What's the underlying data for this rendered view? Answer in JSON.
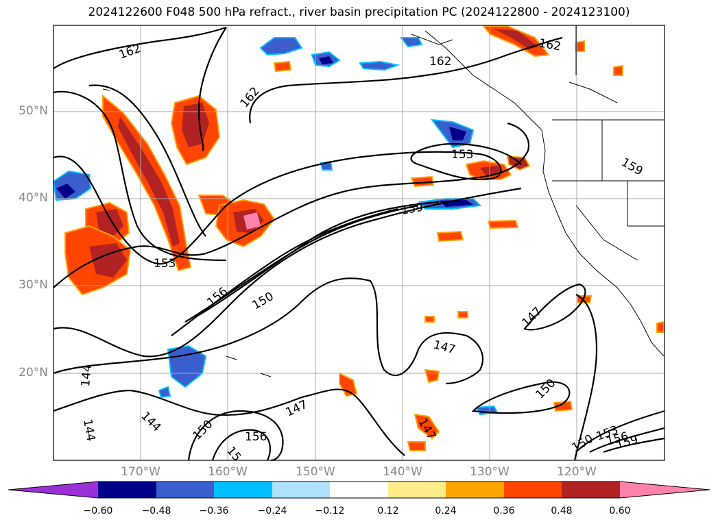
{
  "title": "2024122600 F048 500 hPa refract., river basin precipitation PC (2024122800 - 2024123100)",
  "lat_labels": [
    "50°N",
    "40°N",
    "30°N",
    "20°N"
  ],
  "lon_labels": [
    "170°W",
    "160°W",
    "150°W",
    "140°W",
    "130°W",
    "120°W"
  ],
  "contour_labels": [
    "162",
    "162",
    "162",
    "162",
    "153",
    "159",
    "159",
    "153",
    "156",
    "150",
    "147",
    "147",
    "150",
    "147",
    "144",
    "144",
    "144",
    "150",
    "156",
    "15",
    "147",
    "150",
    "153",
    "156",
    "159"
  ],
  "colorbar": {
    "ticks": [
      "−0.60",
      "−0.48",
      "−0.36",
      "−0.24",
      "−0.12",
      "0.12",
      "0.24",
      "0.36",
      "0.48",
      "0.60"
    ],
    "colors": [
      "#9b30d9",
      "#00008b",
      "#3a5fcd",
      "#00bfff",
      "#b0e2ff",
      "#ffffff",
      "#ffec8b",
      "#ffa500",
      "#ff4500",
      "#b22222",
      "#ff82ab"
    ]
  }
}
